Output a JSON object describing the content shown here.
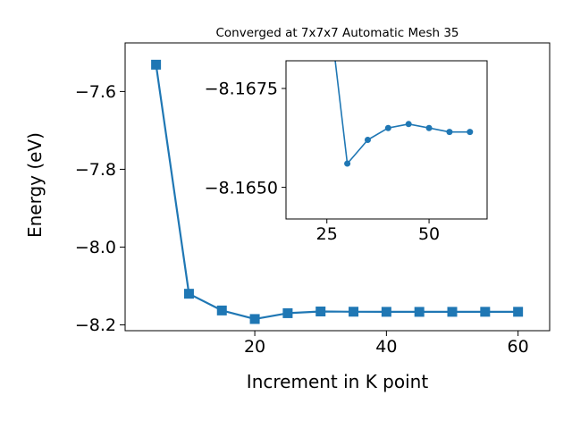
{
  "chart_data": {
    "type": "line",
    "title": "Converged at 7x7x7 Automatic Mesh 35",
    "xlabel": "Increment in K point",
    "ylabel": "Energy (eV)",
    "color": "#1f77b4",
    "grid": false,
    "legend": "none",
    "series": {
      "name": "total-energy-vs-kpoint-increment",
      "x": [
        5,
        10,
        15,
        20,
        25,
        30,
        35,
        40,
        45,
        50,
        55,
        60
      ],
      "y": [
        -7.531,
        -8.12,
        -8.163,
        -8.185,
        -8.17,
        -8.1656,
        -8.1662,
        -8.1665,
        -8.1666,
        -8.1665,
        -8.1664,
        -8.1664
      ]
    },
    "main_axes": {
      "marker": "square",
      "xlim": [
        0.3,
        64.8
      ],
      "ylim_top": -7.475,
      "ylim_bottom": -8.215,
      "xticks": [
        {
          "v": 20,
          "label": "20"
        },
        {
          "v": 40,
          "label": "40"
        },
        {
          "v": 60,
          "label": "60"
        }
      ],
      "yticks": [
        {
          "v": -7.6,
          "label": "−7.6"
        },
        {
          "v": -7.8,
          "label": "−7.8"
        },
        {
          "v": -8.0,
          "label": "−8.0"
        },
        {
          "v": -8.2,
          "label": "−8.2"
        }
      ]
    },
    "inset_axes": {
      "marker": "circle",
      "y_axis_inverted": true,
      "series": {
        "name": "zoom-on-converged-region",
        "x": [
          25,
          30,
          35,
          40,
          45,
          50,
          55,
          60
        ],
        "y": [
          -8.17,
          -8.1656,
          -8.1662,
          -8.1665,
          -8.1666,
          -8.1665,
          -8.1664,
          -8.1664
        ]
      },
      "xlim": [
        15,
        64.2
      ],
      "ylim_top": -8.1682,
      "ylim_bottom": -8.1642,
      "xticks": [
        {
          "v": 25,
          "label": "25"
        },
        {
          "v": 50,
          "label": "50"
        }
      ],
      "yticks": [
        {
          "v": -8.1675,
          "label": "−8.1675"
        },
        {
          "v": -8.165,
          "label": "−8.1650"
        }
      ]
    }
  }
}
